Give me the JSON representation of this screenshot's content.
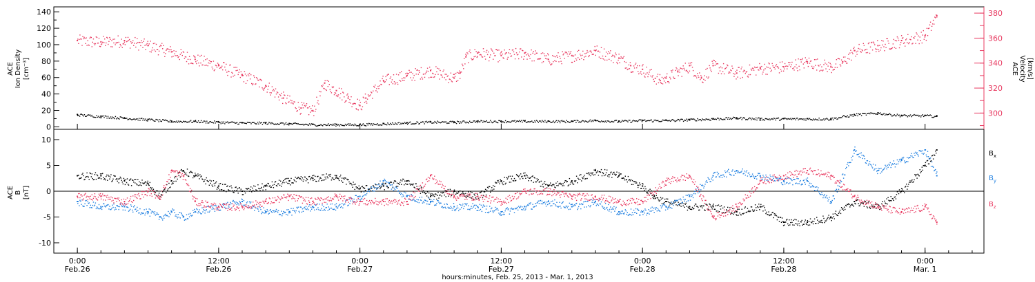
{
  "colors": {
    "black": "#000000",
    "pink": "#e8385f",
    "blue": "#1f7fe0"
  },
  "chart_data": [
    {
      "type": "scatter",
      "panel": "top",
      "ylabel_left": [
        "ACE",
        "Ion Density",
        "[cm⁻³]"
      ],
      "ylabel_right": [
        "ACE",
        "Velocity",
        "[km/s]"
      ],
      "left_ticks": [
        "0",
        "20",
        "40",
        "60",
        "80",
        "100",
        "120",
        "140"
      ],
      "right_ticks": [
        "300",
        "320",
        "340",
        "360",
        "380"
      ],
      "ylim_left": [
        -3,
        146
      ],
      "ylim_right": [
        287,
        385
      ],
      "grid": false,
      "series": [
        {
          "axis": "right",
          "color": "#e8385f",
          "x_hours": [
            0,
            2,
            4,
            6,
            8,
            10,
            12,
            14,
            16,
            17.5,
            19,
            20,
            21,
            22,
            23,
            24,
            24.5,
            26,
            28,
            30,
            32,
            32.5,
            33,
            34,
            36,
            38,
            40,
            42,
            44,
            46,
            47,
            48,
            49.5,
            50,
            51,
            52,
            53,
            54,
            56,
            58,
            60,
            62,
            64,
            65,
            66,
            68,
            70,
            72,
            73
          ],
          "values": [
            358,
            357,
            358,
            354,
            349,
            343,
            338,
            330,
            322,
            312,
            304,
            302,
            324,
            318,
            312,
            306,
            312,
            326,
            330,
            334,
            328,
            332,
            345,
            348,
            346,
            348,
            343,
            346,
            350,
            344,
            338,
            335,
            326,
            328,
            333,
            338,
            328,
            338,
            332,
            336,
            337,
            341,
            337,
            341,
            350,
            354,
            358,
            362,
            378
          ]
        },
        {
          "axis": "left",
          "color": "#000000",
          "x_hours": [
            0,
            2,
            4,
            6,
            8,
            10,
            12,
            14,
            16,
            18,
            20,
            22,
            24,
            26,
            28,
            30,
            32,
            34,
            36,
            38,
            40,
            42,
            44,
            46,
            48,
            50,
            52,
            54,
            56,
            58,
            60,
            62,
            64,
            66,
            68,
            70,
            72,
            73
          ],
          "values": [
            15,
            13,
            11,
            9,
            7,
            7,
            6,
            5,
            5,
            4,
            3,
            3,
            3,
            4,
            5,
            6,
            6,
            7,
            7,
            7,
            7,
            7,
            8,
            7,
            8,
            8,
            9,
            10,
            11,
            10,
            10,
            10,
            10,
            15,
            17,
            14,
            14,
            13
          ]
        }
      ]
    },
    {
      "type": "scatter",
      "panel": "bottom",
      "ylabel_left": [
        "ACE",
        "B",
        "[nT]"
      ],
      "left_ticks": [
        "10",
        "5",
        "0",
        "-5",
        "-10"
      ],
      "ylim": [
        -12,
        12
      ],
      "reference_line": 0,
      "grid": false,
      "legend": [
        "Bx",
        "By",
        "Bz"
      ],
      "legend_placement": "right",
      "series": [
        {
          "name": "Bx",
          "color": "#000000",
          "x_hours": [
            0,
            2,
            4,
            6,
            7,
            8,
            9,
            10,
            12,
            14,
            16,
            18,
            20,
            22,
            24,
            26,
            28,
            30,
            32,
            34,
            36,
            38,
            40,
            42,
            44,
            46,
            48,
            49,
            50,
            52,
            54,
            56,
            58,
            60,
            62,
            64,
            66,
            68,
            70,
            72,
            73
          ],
          "values": [
            3,
            3,
            2,
            1.5,
            -1,
            2,
            4,
            3,
            1,
            0,
            1,
            2,
            2.5,
            3,
            0.5,
            1,
            2,
            -1,
            0,
            -1,
            2,
            3,
            1,
            2,
            4,
            3,
            1,
            -1,
            -2,
            -3,
            -3,
            -4,
            -3,
            -6,
            -6,
            -5,
            -2,
            -3,
            0,
            5,
            8
          ]
        },
        {
          "name": "By",
          "color": "#1f7fe0",
          "x_hours": [
            0,
            2,
            4,
            6,
            7,
            8,
            9,
            10,
            12,
            14,
            16,
            18,
            20,
            22,
            24,
            26,
            28,
            30,
            32,
            34,
            36,
            38,
            40,
            42,
            44,
            46,
            48,
            50,
            52,
            54,
            56,
            58,
            60,
            62,
            64,
            66,
            68,
            70,
            72,
            73
          ],
          "values": [
            -2,
            -3,
            -3,
            -4,
            -5,
            -4,
            -5,
            -4,
            -3,
            -2,
            -4,
            -4,
            -3,
            -3,
            -1,
            2,
            -1,
            -2,
            -3,
            -3,
            -4,
            -3,
            -2,
            -3,
            -2,
            -4,
            -4,
            -3,
            -1,
            3,
            4,
            3,
            2,
            2,
            -2,
            8,
            4,
            6,
            8,
            3
          ]
        },
        {
          "name": "Bz",
          "color": "#e8385f",
          "x_hours": [
            0,
            2,
            4,
            6,
            7,
            8,
            9,
            10,
            12,
            14,
            16,
            18,
            20,
            22,
            24,
            26,
            28,
            30,
            32,
            34,
            36,
            38,
            40,
            42,
            44,
            46,
            48,
            50,
            52,
            54,
            56,
            58,
            60,
            62,
            64,
            66,
            68,
            70,
            72,
            73
          ],
          "values": [
            -1,
            -1,
            -2,
            0,
            -1,
            4,
            3,
            -2,
            -3,
            -3,
            -2,
            -1,
            -2,
            -1,
            -2,
            -2,
            -2,
            3,
            -1,
            -1,
            -2,
            0,
            0,
            -1,
            -1,
            -2,
            -2,
            2,
            3,
            -5,
            -3,
            2,
            3,
            4,
            3,
            -1,
            -3,
            -4,
            -3,
            -6
          ]
        }
      ]
    }
  ],
  "x_axis": {
    "tick_hours": [
      0,
      12,
      24,
      36,
      48,
      60,
      72
    ],
    "tick_time": [
      "0:00",
      "12:00",
      "0:00",
      "12:00",
      "0:00",
      "12:00",
      "0:00"
    ],
    "tick_date": [
      "Feb.26",
      "Feb.26",
      "Feb.27",
      "Feb.27",
      "Feb.28",
      "Feb.28",
      "Mar. 1"
    ],
    "range_hours": [
      -2,
      77
    ],
    "title": "hours:minutes, Feb. 25, 2013 - Mar.  1, 2013"
  },
  "legend_labels": {
    "bx": "B",
    "bx_sub": "x",
    "by": "B",
    "by_sub": "y",
    "bz": "B",
    "bz_sub": "z"
  }
}
